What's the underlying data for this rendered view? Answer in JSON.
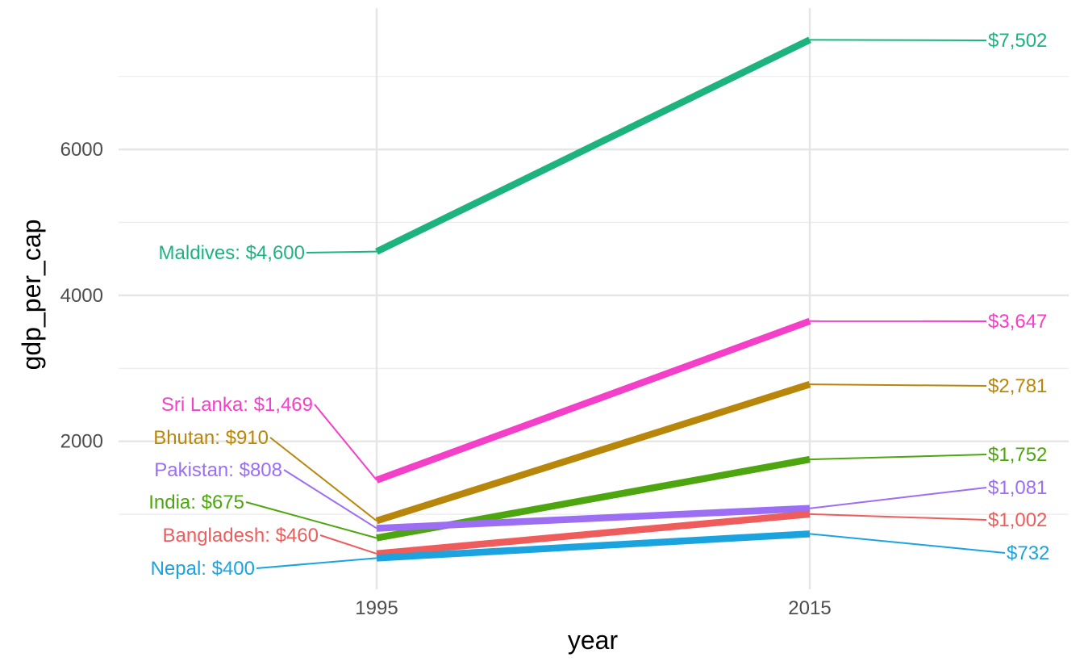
{
  "chart_data": {
    "type": "line",
    "title": "",
    "xlabel": "year",
    "ylabel": "gdp_per_cap",
    "x": [
      1995,
      2015
    ],
    "x_ticks": [
      "1995",
      "2015"
    ],
    "y_ticks": [
      "2000",
      "4000",
      "6000"
    ],
    "ylim": [
      0,
      7800
    ],
    "grid": true,
    "legend": "none",
    "series": [
      {
        "name": "Maldives",
        "values": [
          4600,
          7502
        ],
        "color": "#1DB37F",
        "left_label": "Maldives: $4,600",
        "right_label": "$7,502"
      },
      {
        "name": "Sri Lanka",
        "values": [
          1469,
          3647
        ],
        "color": "#F43FC8",
        "left_label": "Sri Lanka: $1,469",
        "right_label": "$3,647"
      },
      {
        "name": "Bhutan",
        "values": [
          910,
          2781
        ],
        "color": "#B8860B",
        "left_label": "Bhutan: $910",
        "right_label": "$2,781"
      },
      {
        "name": "India",
        "values": [
          675,
          1752
        ],
        "color": "#4DA60F",
        "left_label": "India: $675",
        "right_label": "$1,752"
      },
      {
        "name": "Pakistan",
        "values": [
          808,
          1081
        ],
        "color": "#9B6EF3",
        "left_label": "Pakistan: $808",
        "right_label": "$1,081"
      },
      {
        "name": "Bangladesh",
        "values": [
          460,
          1002
        ],
        "color": "#EE5C5C",
        "left_label": "Bangladesh: $460",
        "right_label": "$1,002"
      },
      {
        "name": "Nepal",
        "values": [
          400,
          732
        ],
        "color": "#1BA3DF",
        "left_label": "Nepal: $400",
        "right_label": "$732"
      }
    ]
  }
}
